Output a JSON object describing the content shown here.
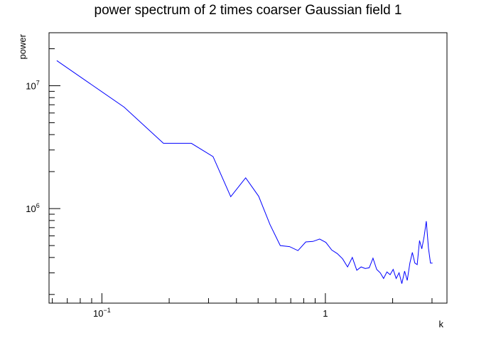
{
  "chart_data": {
    "type": "line",
    "title": "power spectrum of 2 times coarser Gaussian field 1",
    "xlabel": "k",
    "ylabel": "power",
    "x_scale": "log",
    "y_scale": "log",
    "xlim": [
      0.058,
      3.5
    ],
    "ylim": [
      170000,
      27000000
    ],
    "x_ticks": [
      {
        "value": 0.1,
        "base": "10",
        "exp": "−1"
      },
      {
        "value": 1,
        "base": "1",
        "exp": ""
      }
    ],
    "y_ticks": [
      {
        "value": 1000000,
        "base": "10",
        "exp": "6"
      },
      {
        "value": 10000000,
        "base": "10",
        "exp": "7"
      }
    ],
    "grid": false,
    "line_color": "#0000ff",
    "series": [
      {
        "x": [
          0.0628,
          0.1257,
          0.1885,
          0.2513,
          0.3142,
          0.377,
          0.4398,
          0.5027,
          0.5655,
          0.6283,
          0.6912,
          0.754,
          0.8168,
          0.8796,
          0.9425,
          1.0053,
          1.0681,
          1.131,
          1.1938,
          1.2566,
          1.3195,
          1.3823,
          1.4451,
          1.508,
          1.5708,
          1.6336,
          1.6965,
          1.7593,
          1.8221,
          1.885,
          1.9478,
          2.0106,
          2.0735,
          2.1363,
          2.1991,
          2.2619,
          2.3248,
          2.3876,
          2.4504,
          2.5133,
          2.5761,
          2.6389,
          2.7018,
          2.7646,
          2.8274,
          2.8903,
          2.9531,
          3.0159
        ],
        "y": [
          16000000,
          6700000,
          3400000,
          3400000,
          2650000,
          1250000,
          1780000,
          1260000,
          740000,
          500000,
          490000,
          455000,
          535000,
          540000,
          565000,
          530000,
          460000,
          430000,
          390000,
          335000,
          400000,
          315000,
          335000,
          325000,
          330000,
          395000,
          320000,
          300000,
          270000,
          305000,
          290000,
          320000,
          270000,
          300000,
          245000,
          310000,
          260000,
          360000,
          440000,
          360000,
          350000,
          550000,
          470000,
          590000,
          790000,
          480000,
          360000,
          360000
        ]
      }
    ]
  }
}
